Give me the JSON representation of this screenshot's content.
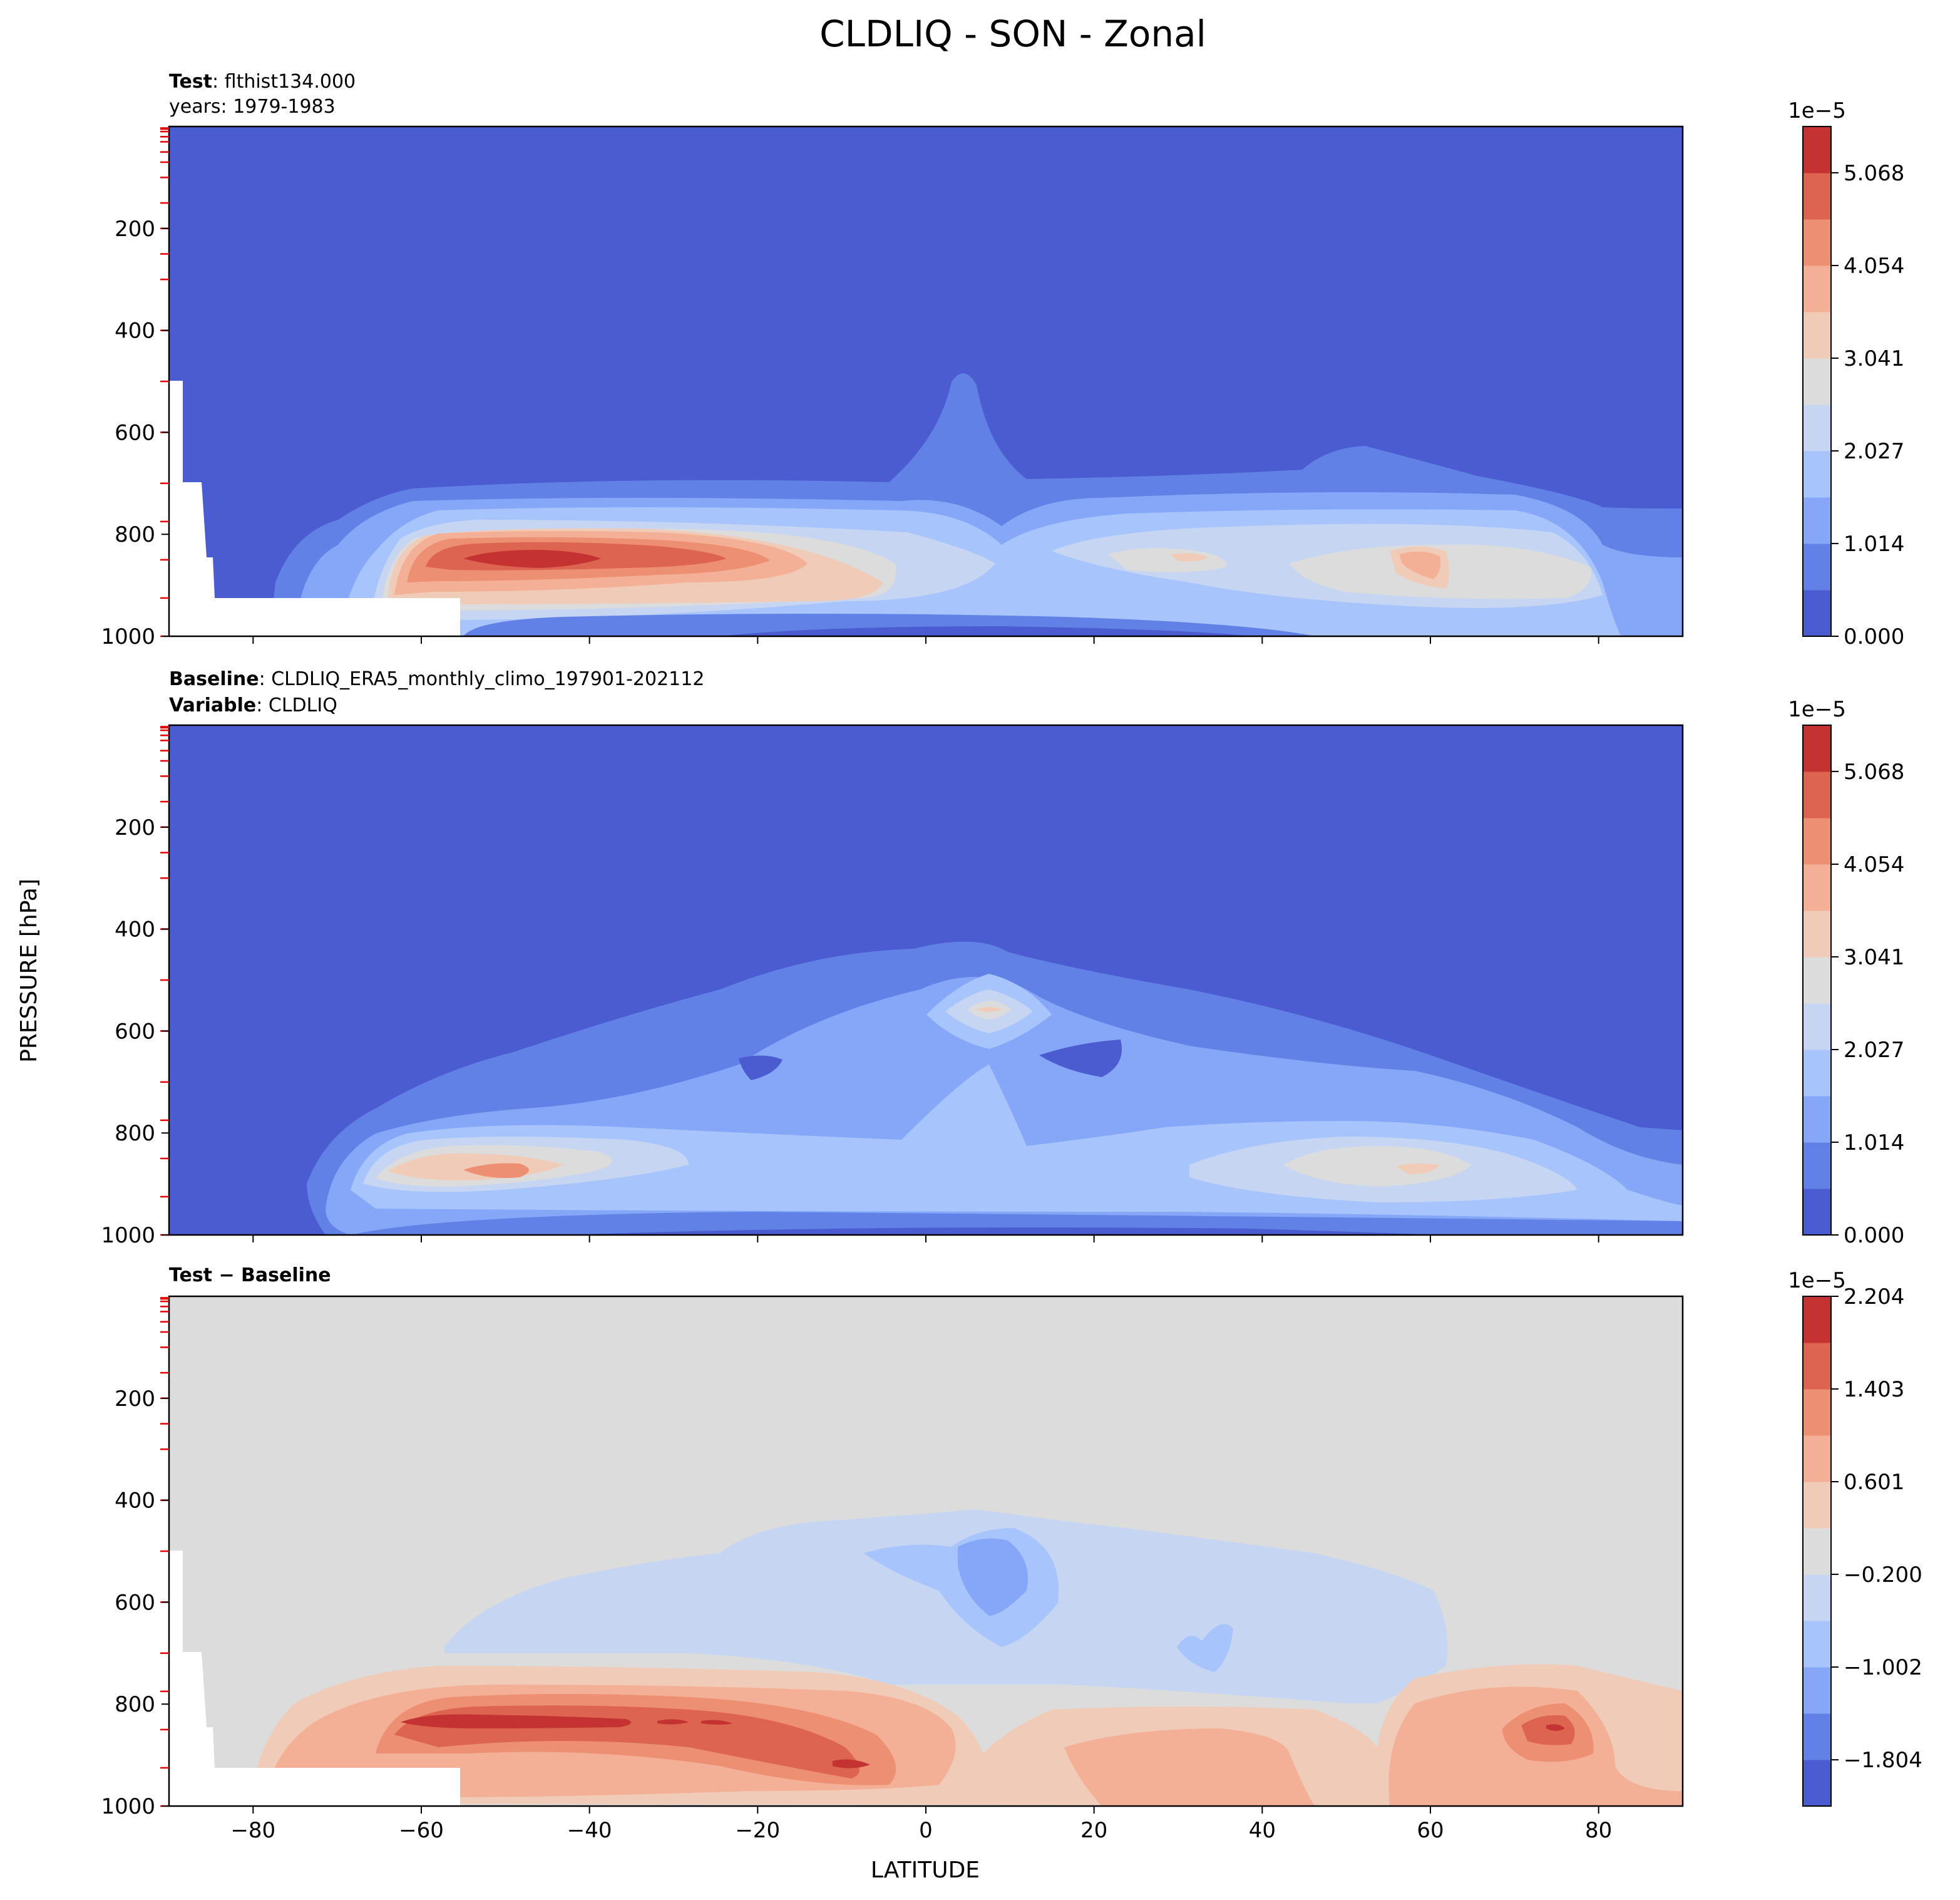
{
  "figure": {
    "title": "CLDLIQ - SON - Zonal",
    "ylabel": "PRESSURE [hPa]",
    "xlabel": "LATITUDE",
    "panel1": {
      "test_label": "Test",
      "test_value": ": flthist134.000",
      "years": "years: 1979-1983"
    },
    "panel2": {
      "baseline_label": "Baseline",
      "baseline_value": ": CLDLIQ_ERA5_monthly_climo_197901-202112",
      "variable_label": "Variable",
      "variable_value": ": CLDLIQ"
    },
    "panel3": {
      "diff_label": "Test − Baseline"
    },
    "colorbar_offset": "1e−5"
  },
  "chart_data": [
    {
      "type": "heatmap",
      "name": "Test",
      "x_range": [
        -90,
        90
      ],
      "y_range": [
        1000,
        0
      ],
      "x_ticks": [
        "−80",
        "−60",
        "−40",
        "−20",
        "0",
        "20",
        "40",
        "60",
        "80"
      ],
      "y_ticks": [
        "200",
        "400",
        "600",
        "800",
        "1000"
      ],
      "colorbar_ticks": [
        "5.068",
        "4.054",
        "3.041",
        "2.027",
        "1.014",
        "0.000"
      ],
      "colorbar_range": [
        0,
        5.574
      ],
      "colors": [
        "#4a5ccf",
        "#6281e6",
        "#86a7f8",
        "#a8c4fc",
        "#c6d6f2",
        "#dcdcdc",
        "#f0ccb8",
        "#f4b096",
        "#ec8f73",
        "#dc6450",
        "#c43232"
      ]
    },
    {
      "type": "heatmap",
      "name": "Baseline",
      "x_range": [
        -90,
        90
      ],
      "y_range": [
        1000,
        0
      ],
      "x_ticks": [
        "−80",
        "−60",
        "−40",
        "−20",
        "0",
        "20",
        "40",
        "60",
        "80"
      ],
      "y_ticks": [
        "200",
        "400",
        "600",
        "800",
        "1000"
      ],
      "colorbar_ticks": [
        "5.068",
        "4.054",
        "3.041",
        "2.027",
        "1.014",
        "0.000"
      ],
      "colorbar_range": [
        0,
        5.574
      ],
      "colors": [
        "#4a5ccf",
        "#6281e6",
        "#86a7f8",
        "#a8c4fc",
        "#c6d6f2",
        "#dcdcdc",
        "#f0ccb8",
        "#f4b096",
        "#ec8f73",
        "#dc6450",
        "#c43232"
      ]
    },
    {
      "type": "heatmap",
      "name": "Test − Baseline",
      "x_range": [
        -90,
        90
      ],
      "y_range": [
        1000,
        0
      ],
      "x_ticks": [
        "−80",
        "−60",
        "−40",
        "−20",
        "0",
        "20",
        "40",
        "60",
        "80"
      ],
      "y_ticks": [
        "200",
        "400",
        "600",
        "800",
        "1000"
      ],
      "colorbar_ticks": [
        "2.204",
        "1.403",
        "0.601",
        "−0.200",
        "−1.002",
        "−1.804"
      ],
      "colorbar_range": [
        -2.204,
        2.204
      ],
      "colors": [
        "#4a5ccf",
        "#6281e6",
        "#86a7f8",
        "#a8c4fc",
        "#c6d6f2",
        "#dcdcdc",
        "#f0ccb8",
        "#f4b096",
        "#ec8f73",
        "#dc6450",
        "#c43232"
      ]
    }
  ]
}
